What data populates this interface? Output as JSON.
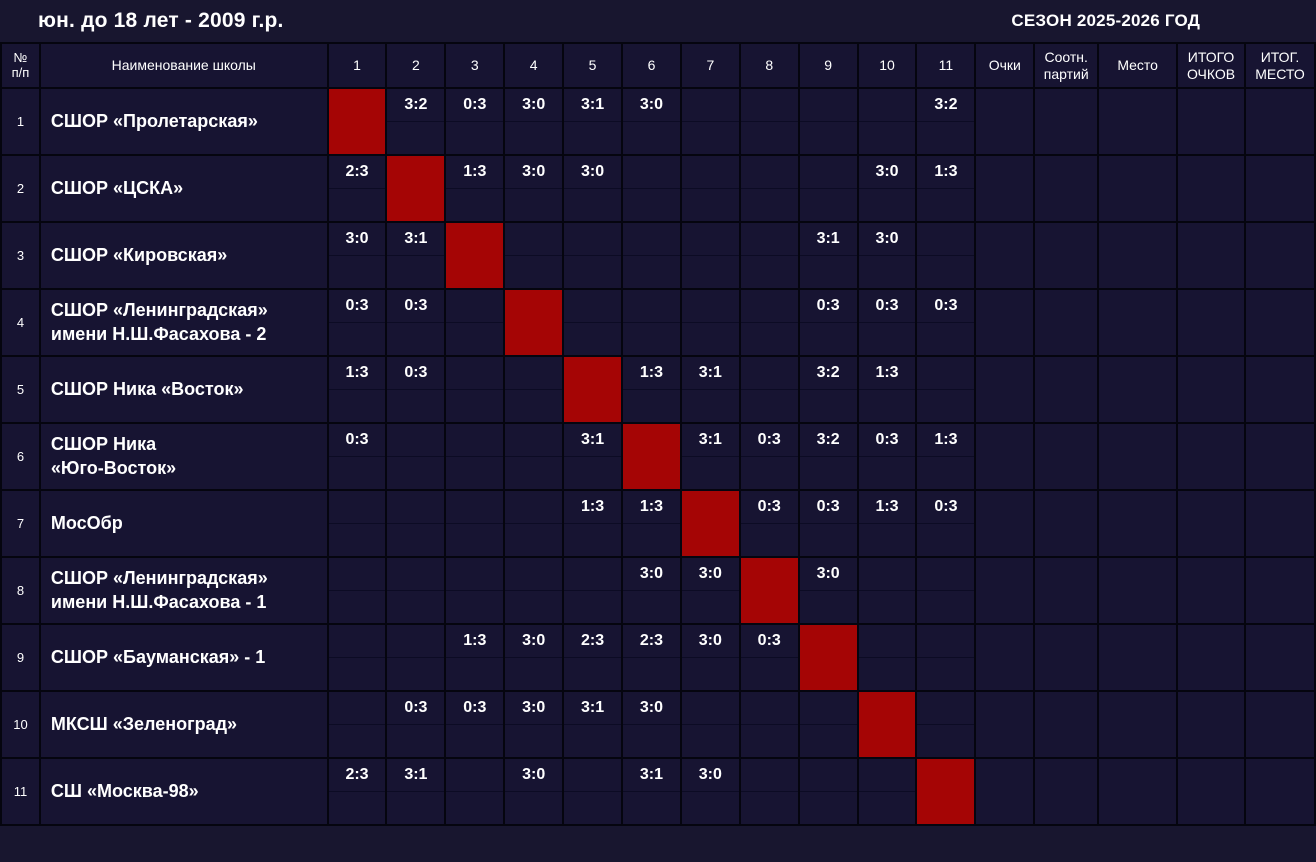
{
  "page": {
    "title": "юн. до 18 лет - 2009 г.р.",
    "season": "СЕЗОН 2025-2026 ГОД"
  },
  "colors": {
    "background": "#18162f",
    "cell": "#171432",
    "grid_line": "#05050f",
    "diagonal": "#a50505",
    "text": "#ffffff"
  },
  "table": {
    "headers": {
      "num": "№\nп/п",
      "school": "Наименование школы",
      "rounds": [
        "1",
        "2",
        "3",
        "4",
        "5",
        "6",
        "7",
        "8",
        "9",
        "10",
        "11"
      ],
      "points": "Очки",
      "ratio": "Соотн.\nпартий",
      "place": "Место",
      "total_points": "ИТОГО\nОЧКОВ",
      "final_place": "ИТОГ.\nМЕСТО"
    },
    "teams": [
      {
        "num": "1",
        "name": "СШОР «Пролетарская»",
        "scores": [
          null,
          "3:2",
          "0:3",
          "3:0",
          "3:1",
          "3:0",
          "",
          "",
          "",
          "",
          "3:2"
        ],
        "points": "",
        "ratio": "",
        "place": "",
        "total_points": "",
        "final_place": ""
      },
      {
        "num": "2",
        "name": "СШОР «ЦСКА»",
        "scores": [
          "2:3",
          null,
          "1:3",
          "3:0",
          "3:0",
          "",
          "",
          "",
          "",
          "3:0",
          "1:3"
        ],
        "points": "",
        "ratio": "",
        "place": "",
        "total_points": "",
        "final_place": ""
      },
      {
        "num": "3",
        "name": "СШОР «Кировская»",
        "scores": [
          "3:0",
          "3:1",
          null,
          "",
          "",
          "",
          "",
          "",
          "3:1",
          "3:0",
          ""
        ],
        "points": "",
        "ratio": "",
        "place": "",
        "total_points": "",
        "final_place": ""
      },
      {
        "num": "4",
        "name": "СШОР «Ленинградская»\nимени Н.Ш.Фасахова - 2",
        "scores": [
          "0:3",
          "0:3",
          "",
          null,
          "",
          "",
          "",
          "",
          "0:3",
          "0:3",
          "0:3"
        ],
        "points": "",
        "ratio": "",
        "place": "",
        "total_points": "",
        "final_place": ""
      },
      {
        "num": "5",
        "name": "СШОР Ника «Восток»",
        "scores": [
          "1:3",
          "0:3",
          "",
          "",
          null,
          "1:3",
          "3:1",
          "",
          "3:2",
          "1:3",
          ""
        ],
        "points": "",
        "ratio": "",
        "place": "",
        "total_points": "",
        "final_place": ""
      },
      {
        "num": "6",
        "name": "СШОР Ника\n«Юго-Восток»",
        "scores": [
          "0:3",
          "",
          "",
          "",
          "3:1",
          null,
          "3:1",
          "0:3",
          "3:2",
          "0:3",
          "1:3"
        ],
        "points": "",
        "ratio": "",
        "place": "",
        "total_points": "",
        "final_place": ""
      },
      {
        "num": "7",
        "name": "МосОбр",
        "scores": [
          "",
          "",
          "",
          "",
          "1:3",
          "1:3",
          null,
          "0:3",
          "0:3",
          "1:3",
          "0:3"
        ],
        "points": "",
        "ratio": "",
        "place": "",
        "total_points": "",
        "final_place": ""
      },
      {
        "num": "8",
        "name": "СШОР «Ленинградская»\nимени Н.Ш.Фасахова - 1",
        "scores": [
          "",
          "",
          "",
          "",
          "",
          "3:0",
          "3:0",
          null,
          "3:0",
          "",
          ""
        ],
        "points": "",
        "ratio": "",
        "place": "",
        "total_points": "",
        "final_place": ""
      },
      {
        "num": "9",
        "name": "СШОР «Бауманская» - 1",
        "scores": [
          "",
          "",
          "1:3",
          "3:0",
          "2:3",
          "2:3",
          "3:0",
          "0:3",
          null,
          "",
          ""
        ],
        "points": "",
        "ratio": "",
        "place": "",
        "total_points": "",
        "final_place": ""
      },
      {
        "num": "10",
        "name": "МКСШ «Зеленоград»",
        "scores": [
          "",
          "0:3",
          "0:3",
          "3:0",
          "3:1",
          "3:0",
          "",
          "",
          "",
          null,
          ""
        ],
        "points": "",
        "ratio": "",
        "place": "",
        "total_points": "",
        "final_place": ""
      },
      {
        "num": "11",
        "name": "СШ «Москва-98»",
        "scores": [
          "2:3",
          "3:1",
          "",
          "3:0",
          "",
          "3:1",
          "3:0",
          "",
          "",
          "",
          null
        ],
        "points": "",
        "ratio": "",
        "place": "",
        "total_points": "",
        "final_place": ""
      }
    ]
  }
}
